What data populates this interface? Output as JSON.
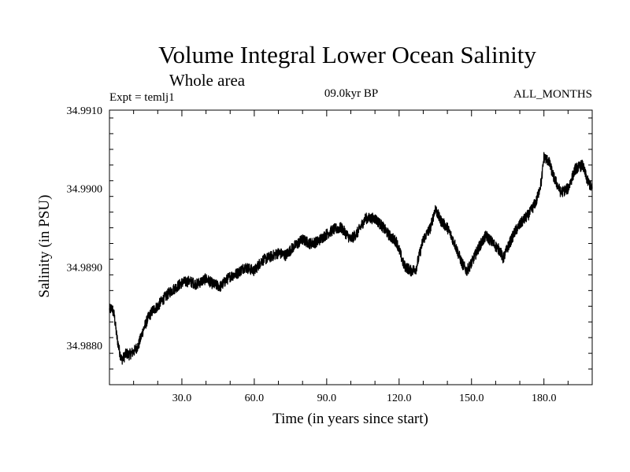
{
  "chart_data": {
    "type": "line",
    "title": "Volume Integral Lower Ocean Salinity",
    "subtitle": "Whole area",
    "experiment": "Expt = temlj1",
    "period": "09.0kyr BP",
    "months": "ALL_MONTHS",
    "xlabel": "Time (in years since start)",
    "ylabel": "Salinity (in PSU)",
    "xlim": [
      0,
      200
    ],
    "ylim": [
      34.9875,
      34.991
    ],
    "x_ticks": [
      30,
      60,
      90,
      120,
      150,
      180
    ],
    "x_tick_labels": [
      "30.0",
      "60.0",
      "90.0",
      "120.0",
      "150.0",
      "180.0"
    ],
    "y_ticks": [
      34.988,
      34.989,
      34.99,
      34.991
    ],
    "y_tick_labels": [
      "34.9880",
      "34.9890",
      "34.9900",
      "34.9910"
    ],
    "series": [
      {
        "name": "Salinity",
        "x": [
          0,
          1,
          2,
          3,
          4,
          5,
          6,
          7,
          8,
          10,
          12,
          14,
          16,
          18,
          20,
          22,
          25,
          28,
          30,
          33,
          36,
          40,
          43,
          46,
          48,
          50,
          53,
          56,
          60,
          63,
          66,
          70,
          73,
          76,
          80,
          83,
          86,
          90,
          93,
          96,
          100,
          103,
          106,
          110,
          113,
          116,
          119,
          122,
          125,
          127,
          130,
          133,
          135,
          137,
          140,
          143,
          146,
          148,
          150,
          153,
          156,
          159,
          162,
          163,
          165,
          168,
          171,
          174,
          177,
          179,
          180,
          182,
          184,
          187,
          190,
          193,
          196,
          198,
          200
        ],
        "values": [
          34.98845,
          34.98848,
          34.98838,
          34.98812,
          34.98795,
          34.98782,
          34.98785,
          34.9879,
          34.98788,
          34.98792,
          34.988,
          34.9882,
          34.98835,
          34.98845,
          34.9885,
          34.98858,
          34.98868,
          34.98875,
          34.9888,
          34.98882,
          34.98878,
          34.98885,
          34.98878,
          34.98875,
          34.98882,
          34.98888,
          34.98892,
          34.989,
          34.98895,
          34.98908,
          34.98912,
          34.98918,
          34.98915,
          34.98925,
          34.98935,
          34.9893,
          34.98932,
          34.98942,
          34.98948,
          34.9895,
          34.98935,
          34.98945,
          34.98962,
          34.98962,
          34.98952,
          34.9894,
          34.98932,
          34.98902,
          34.98895,
          34.98898,
          34.98935,
          34.9895,
          34.98975,
          34.9896,
          34.9895,
          34.9893,
          34.98905,
          34.98895,
          34.98905,
          34.98925,
          34.9894,
          34.9893,
          34.9892,
          34.9891,
          34.98925,
          34.98945,
          34.98958,
          34.98968,
          34.98985,
          34.9901,
          34.9904,
          34.99035,
          34.99015,
          34.98995,
          34.99,
          34.99025,
          34.9903,
          34.9901,
          34.99
        ]
      }
    ]
  }
}
